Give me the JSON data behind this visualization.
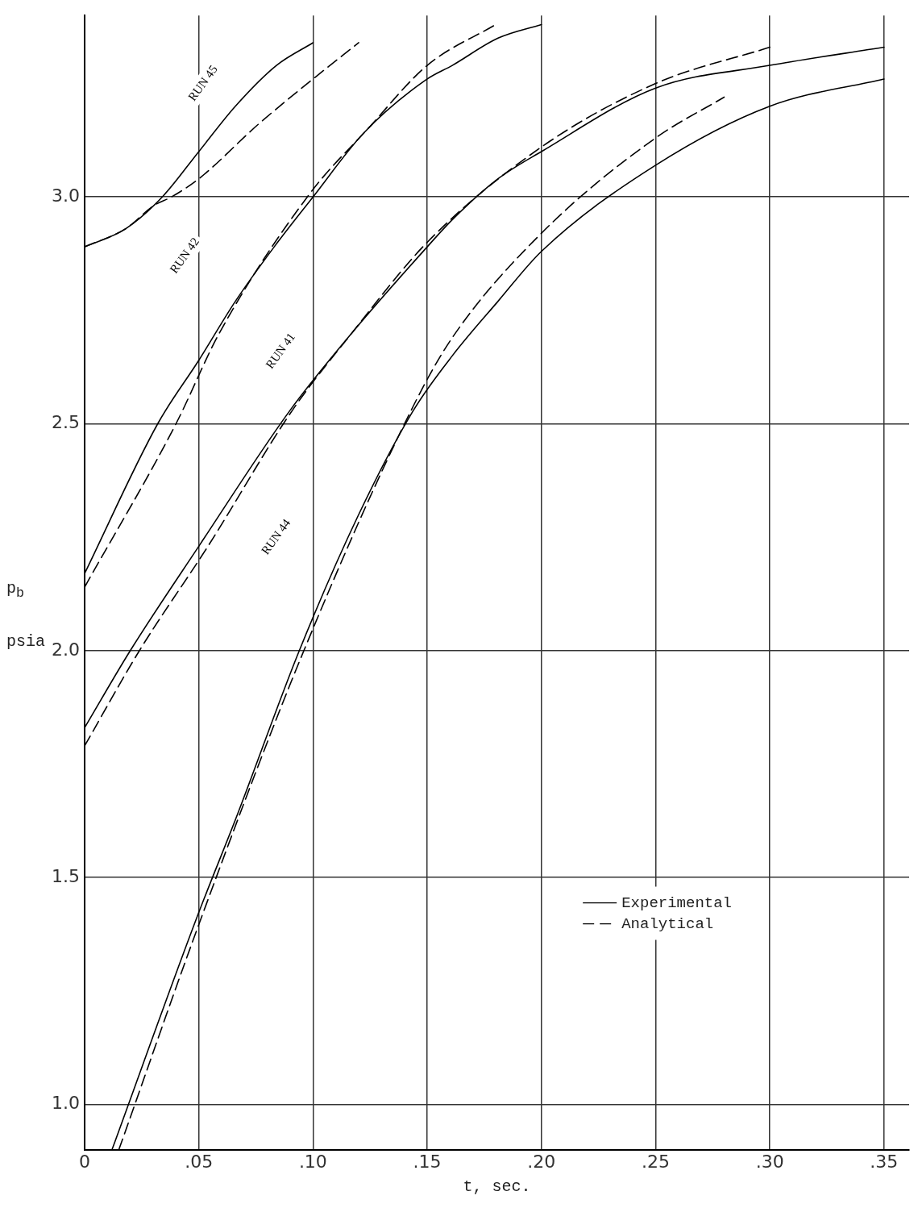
{
  "chart_data": {
    "type": "line",
    "xlabel": "t, sec.",
    "ylabel": "p$_{b}$ psia",
    "xlim": [
      0,
      0.361
    ],
    "ylim": [
      0.9,
      3.4
    ],
    "xticks": [
      {
        "value": 0,
        "label": "0"
      },
      {
        "value": 0.05,
        "label": ".05"
      },
      {
        "value": 0.1,
        "label": ".10"
      },
      {
        "value": 0.15,
        "label": ".15"
      },
      {
        "value": 0.2,
        "label": ".20"
      },
      {
        "value": 0.25,
        "label": ".25"
      },
      {
        "value": 0.3,
        "label": ".30"
      },
      {
        "value": 0.35,
        "label": ".35"
      }
    ],
    "yticks": [
      {
        "value": 1,
        "label": "1.0"
      },
      {
        "value": 1.5,
        "label": "1.5"
      },
      {
        "value": 2,
        "label": "2.0"
      },
      {
        "value": 2.5,
        "label": "2.5"
      },
      {
        "value": 3,
        "label": "3.0"
      }
    ],
    "grid": true,
    "legend": "bottom right",
    "marker": "none",
    "series": [
      {
        "name": "Experimental",
        "color": "#000000",
        "line_style": "solid",
        "x": [
          0,
          0.018,
          0.034,
          0.05,
          0.066,
          0.084,
          0.1
        ],
        "values": [
          2.89,
          2.93,
          3.0,
          3.1,
          3.2,
          3.29,
          3.34
        ]
      },
      {
        "name": "Analytical",
        "color": "#000000",
        "line_style": "dashed",
        "x": [
          0,
          0.018,
          0.03,
          0.038,
          0.05,
          0.076,
          0.1,
          0.12
        ],
        "values": [
          2.89,
          2.93,
          2.98,
          3.0,
          3.04,
          3.16,
          3.26,
          3.34
        ]
      },
      {
        "color": "#000000",
        "line_style": "solid",
        "x": [
          0,
          0.032,
          0.05,
          0.066,
          0.083,
          0.1,
          0.122,
          0.15,
          0.161,
          0.181,
          0.2
        ],
        "values": [
          2.17,
          2.5,
          2.64,
          2.77,
          2.89,
          3.0,
          3.14,
          3.26,
          3.29,
          3.35,
          3.38
        ]
      },
      {
        "color": "#000000",
        "line_style": "dashed",
        "x": [
          0,
          0.04,
          0.059,
          0.099,
          0.124,
          0.15,
          0.18
        ],
        "values": [
          2.14,
          2.5,
          2.7,
          3.01,
          3.15,
          3.29,
          3.38
        ]
      },
      {
        "color": "#000000",
        "line_style": "solid",
        "x": [
          0,
          0.02,
          0.05,
          0.09,
          0.117,
          0.15,
          0.161,
          0.181,
          0.2,
          0.25,
          0.3,
          0.35
        ],
        "values": [
          1.83,
          2.0,
          2.23,
          2.53,
          2.7,
          2.89,
          2.95,
          3.04,
          3.1,
          3.24,
          3.29,
          3.33
        ]
      },
      {
        "color": "#000000",
        "line_style": "dashed",
        "x": [
          0,
          0.024,
          0.054,
          0.091,
          0.117,
          0.15,
          0.2,
          0.25,
          0.3
        ],
        "values": [
          1.79,
          2.0,
          2.23,
          2.53,
          2.7,
          2.9,
          3.11,
          3.25,
          3.33
        ]
      },
      {
        "color": "#000000",
        "line_style": "solid",
        "x": [
          0.012,
          0.049,
          0.067,
          0.094,
          0.12,
          0.144,
          0.161,
          0.181,
          0.2,
          0.25,
          0.3,
          0.35
        ],
        "values": [
          0.9,
          1.41,
          1.64,
          2.0,
          2.3,
          2.53,
          2.65,
          2.77,
          2.88,
          3.07,
          3.2,
          3.26
        ]
      },
      {
        "color": "#000000",
        "line_style": "dashed",
        "x": [
          0.015,
          0.051,
          0.096,
          0.144,
          0.161,
          0.2,
          0.25,
          0.28
        ],
        "values": [
          0.9,
          1.41,
          2.0,
          2.54,
          2.69,
          2.92,
          3.13,
          3.22
        ]
      }
    ],
    "annotations": [
      "RUN 45",
      "RUN 42",
      "RUN 41",
      "RUN 44"
    ]
  }
}
